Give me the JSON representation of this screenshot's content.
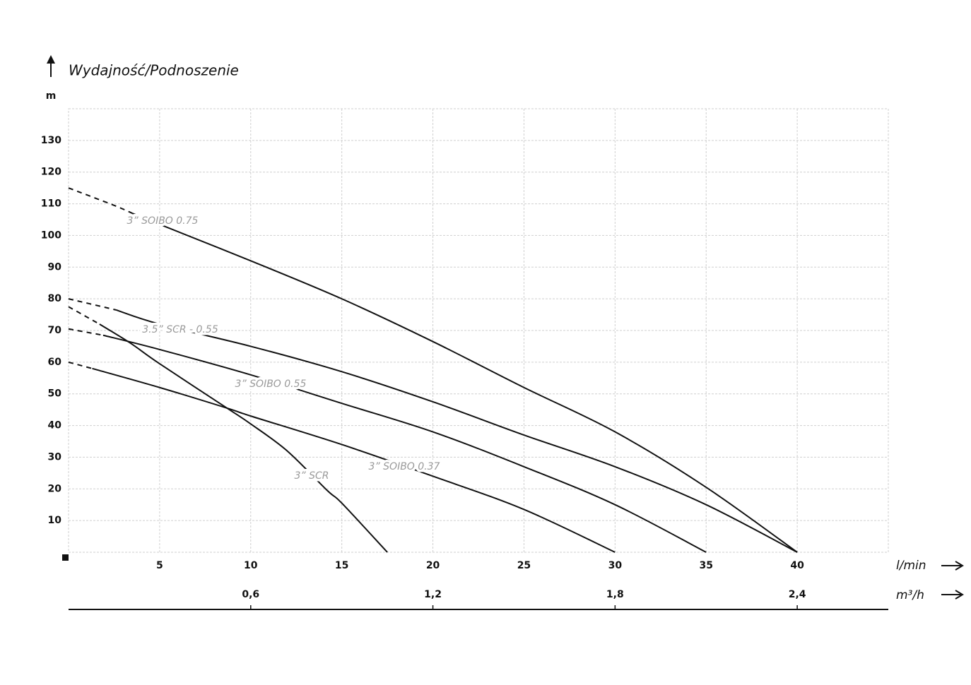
{
  "chart_data": {
    "type": "line",
    "title": "Wydajność/Podnoszenie",
    "y_label": "m",
    "x_label": "l/min",
    "x2_label": "m³/h",
    "xlim": [
      0,
      45
    ],
    "xticks": [
      5,
      10,
      15,
      20,
      25,
      30,
      35,
      40
    ],
    "ylim": [
      0,
      140
    ],
    "yticks": [
      10,
      20,
      30,
      40,
      50,
      60,
      70,
      80,
      90,
      100,
      110,
      120,
      130
    ],
    "x2lim": [
      0,
      2.7
    ],
    "x2ticks": [
      {
        "value": 0.6,
        "label": "0,6"
      },
      {
        "value": 1.2,
        "label": "1,2"
      },
      {
        "value": 1.8,
        "label": "1,8"
      },
      {
        "value": 2.4,
        "label": "2,4"
      }
    ],
    "grid": true,
    "series": [
      {
        "name": "3” SOIBO 0.75",
        "color": "#111111",
        "dashed_to": 3.5,
        "x": [
          0,
          2.5,
          3.5,
          5,
          10,
          15,
          20,
          25,
          30,
          35,
          40
        ],
        "values": [
          115,
          109.5,
          107,
          103.5,
          92,
          80,
          66.5,
          52,
          38,
          20.5,
          0
        ]
      },
      {
        "name": "3.5” SCR - 0.55",
        "color": "#111111",
        "dashed_to": 2.6,
        "x": [
          0,
          2.6,
          5,
          10,
          15,
          20,
          25,
          30,
          35,
          40
        ],
        "values": [
          80,
          76.5,
          72,
          65,
          57,
          47.5,
          37,
          27,
          15,
          0
        ]
      },
      {
        "name": "3” SOIBO 0.55",
        "color": "#111111",
        "dashed_to": 1.9,
        "x": [
          0,
          1.9,
          5,
          10,
          15,
          20,
          25,
          30,
          35
        ],
        "values": [
          70.5,
          68.5,
          64,
          56,
          47,
          38,
          27,
          15,
          0
        ]
      },
      {
        "name": "3” SOIBO 0.37",
        "color": "#111111",
        "dashed_to": 1.3,
        "x": [
          0,
          1.3,
          5,
          8.7,
          10,
          15,
          20,
          25,
          30
        ],
        "values": [
          60,
          58,
          52,
          45.5,
          43,
          34,
          24,
          13.5,
          0
        ]
      },
      {
        "name": "3” SCR",
        "color": "#111111",
        "dashed_to": 1.7,
        "x": [
          0,
          1.7,
          3.4,
          5,
          8.7,
          10,
          12,
          14.2,
          15,
          17.5
        ],
        "values": [
          77.5,
          72,
          66,
          59.5,
          45.5,
          40.5,
          32,
          19.5,
          15.5,
          0
        ]
      }
    ]
  }
}
